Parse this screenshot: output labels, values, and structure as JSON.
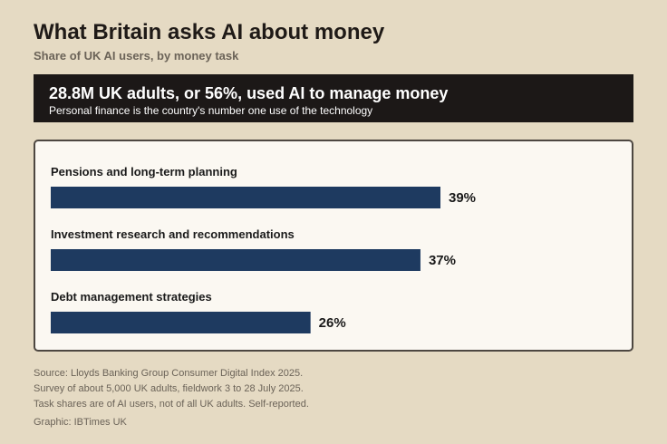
{
  "header": {
    "title": "What Britain asks AI about money",
    "subtitle": "Share of UK AI users, by money task"
  },
  "banner": {
    "headline": "28.8M UK adults, or 56%, used AI to manage money",
    "subline": "Personal finance is the country's number one use of the technology"
  },
  "chart_data": {
    "type": "bar",
    "orientation": "horizontal",
    "categories": [
      "Pensions and long-term planning",
      "Investment research and recommendations",
      "Debt management strategies"
    ],
    "values": [
      39,
      37,
      26
    ],
    "value_labels": [
      "39%",
      "37%",
      "26%"
    ],
    "unit": "%",
    "xlim": [
      0,
      50
    ],
    "grid": false,
    "legend": "none",
    "colors": {
      "bar": "#1e3a60"
    }
  },
  "footer": {
    "source_lines": [
      "Source: Lloyds Banking Group Consumer Digital Index 2025.",
      "Survey of about 5,000 UK adults, fieldwork 3 to 28 July 2025.",
      "Task shares are of AI users, not of all UK adults. Self-reported."
    ],
    "credit": "Graphic: IBTimes UK"
  }
}
